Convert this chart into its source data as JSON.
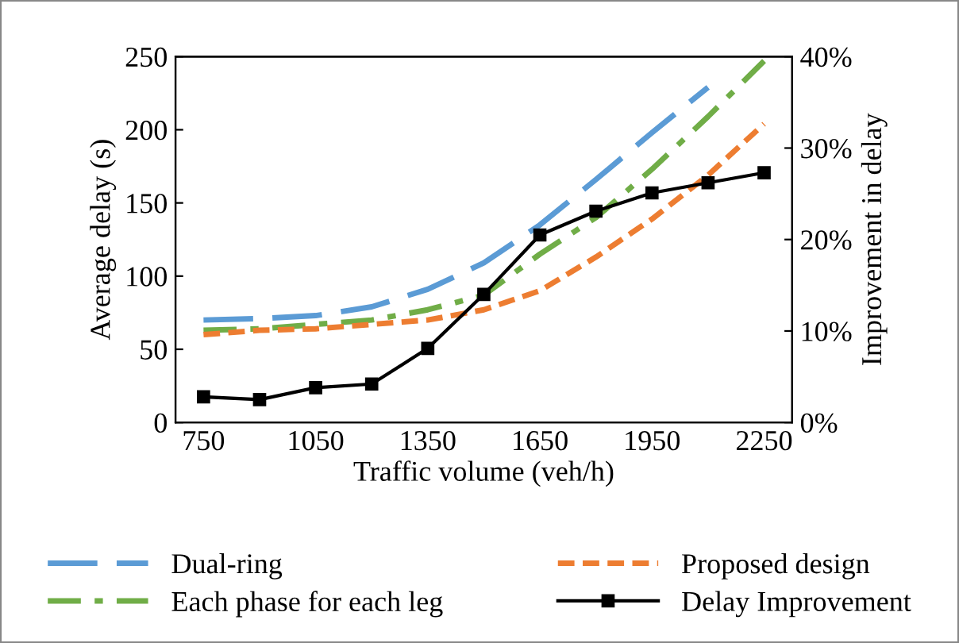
{
  "chart_data": {
    "type": "line",
    "xlabel": "Traffic volume (veh/h)",
    "ylabel": "Average delay (s)",
    "y2label": "Improvement in delay",
    "categories": [
      "750",
      null,
      "1050",
      null,
      "1350",
      null,
      "1650",
      null,
      "1950",
      null,
      "2250"
    ],
    "ylim": [
      0,
      250
    ],
    "yticks": [
      0,
      50,
      100,
      150,
      200,
      250
    ],
    "y2lim": [
      0,
      40
    ],
    "y2ticks": [
      {
        "value": 0,
        "label": "0%"
      },
      {
        "value": 10,
        "label": "10%"
      },
      {
        "value": 20,
        "label": "20%"
      },
      {
        "value": 30,
        "label": "30%"
      },
      {
        "value": 40,
        "label": "40%"
      }
    ],
    "grid": false,
    "legend": "bottom",
    "series": [
      {
        "name": "Dual-ring",
        "color": "#5b9bd5",
        "line_style": "dashed",
        "marker": "none",
        "values": [
          70,
          71,
          73,
          79,
          91,
          109,
          135,
          166,
          198,
          229,
          null
        ]
      },
      {
        "name": "Each phase for each leg",
        "color": "#70ad47",
        "line_style": "dashdot",
        "marker": "none",
        "values": [
          63,
          64,
          67,
          70,
          77,
          87,
          115,
          140,
          173,
          209,
          247
        ]
      },
      {
        "name": "Proposed design",
        "color": "#ed7d31",
        "line_style": "dotted",
        "marker": "none",
        "values": [
          60,
          63,
          64,
          67,
          70,
          77,
          90,
          113,
          139,
          169,
          204
        ]
      },
      {
        "name": "Delay Improvement",
        "color": "#000000",
        "line_style": "solid",
        "marker": "square",
        "axis": "y2",
        "values": [
          2.8,
          2.5,
          3.8,
          4.2,
          8.1,
          14.0,
          20.5,
          23.1,
          25.1,
          26.2,
          27.3
        ]
      }
    ]
  }
}
